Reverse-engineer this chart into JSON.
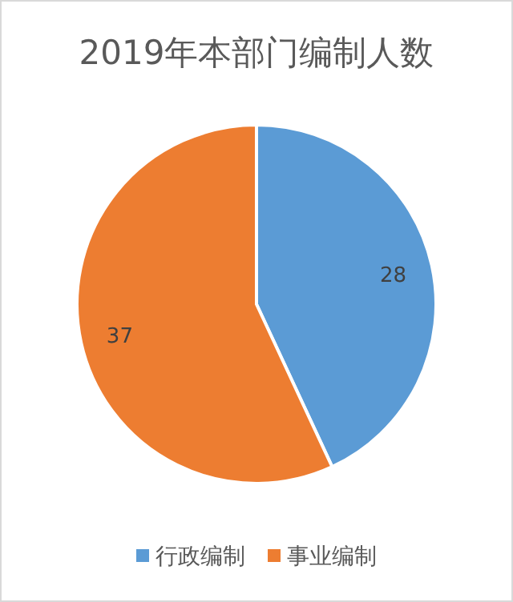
{
  "chart_data": {
    "type": "pie",
    "title": "2019年本部门编制人数",
    "categories": [
      "行政编制",
      "事业编制"
    ],
    "values": [
      28,
      37
    ],
    "colors": [
      "#5b9bd5",
      "#ed7d31"
    ],
    "data_labels": true,
    "legend": "bottom"
  }
}
